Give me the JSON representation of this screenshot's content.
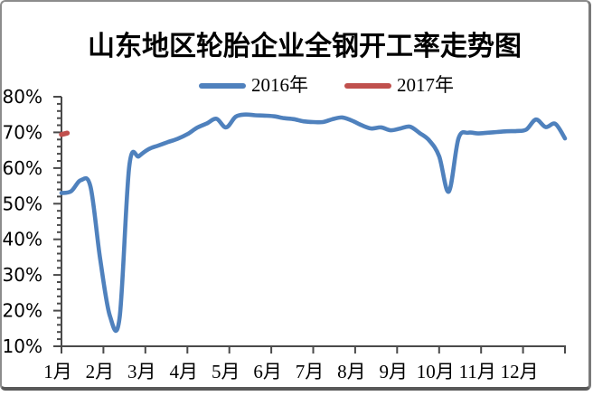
{
  "window": {
    "background": "#ffffff",
    "border_color": "#8c8c8c",
    "axis_color": "#4a4a4a",
    "text_color": "#000000"
  },
  "chart_data": {
    "type": "line",
    "title": "山东地区轮胎企业全钢开工率走势图",
    "legend_position": "top",
    "grid": false,
    "x_axis": {
      "unit": "month",
      "labels": [
        "1月",
        "2月",
        "3月",
        "4月",
        "5月",
        "6月",
        "7月",
        "8月",
        "9月",
        "10月",
        "11月",
        "12月"
      ],
      "num_ticks": 13
    },
    "y_axis": {
      "format": "percent",
      "min": 10,
      "max": 80,
      "major_step": 10,
      "minor_step": 2,
      "labels": [
        "10%",
        "20%",
        "30%",
        "40%",
        "50%",
        "60%",
        "70%",
        "80%"
      ]
    },
    "series": [
      {
        "name": "2016年",
        "color": "#4F81BD",
        "x_unit": "week_of_year",
        "x_weeks": null,
        "values": [
          53.0,
          53.5,
          56.6,
          54.8,
          34.5,
          18.5,
          18.0,
          60.5,
          63.3,
          65.3,
          66.3,
          67.3,
          68.2,
          69.5,
          71.3,
          72.5,
          73.8,
          71.4,
          74.4,
          75.0,
          74.8,
          74.7,
          74.5,
          74.0,
          73.7,
          73.1,
          72.9,
          72.9,
          73.7,
          74.2,
          73.3,
          72.0,
          71.1,
          71.4,
          70.6,
          71.1,
          71.6,
          69.8,
          67.7,
          63.3,
          53.4,
          68.3,
          69.9,
          69.7,
          69.9,
          70.1,
          70.3,
          70.4,
          70.8,
          73.6,
          71.5,
          72.4,
          68.3
        ]
      },
      {
        "name": "2017年",
        "color": "#C0504D",
        "x_unit": "week_of_year",
        "x_weeks": [
          0,
          0.6
        ],
        "values": [
          69.4,
          69.8
        ]
      }
    ]
  }
}
